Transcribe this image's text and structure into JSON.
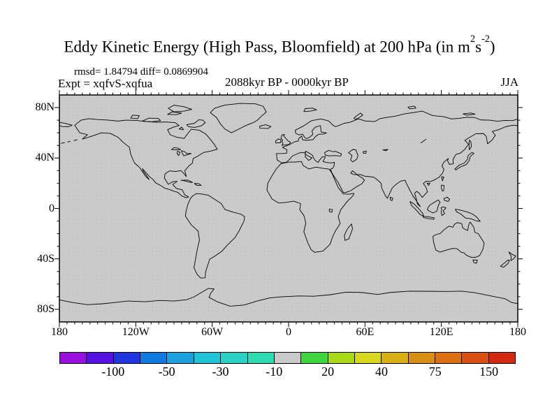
{
  "title": {
    "pre": "Eddy Kinetic Energy (High Pass, Bloomfield) at 200 hPa (in m",
    "sup1": "2",
    "mid": "s",
    "sup2": "-2",
    "post": ")"
  },
  "header": {
    "stats": "rmsd= 1.84794 diff= 0.0869904",
    "expt": "Expt = xqfvS-xqfua",
    "period": "2088kyr BP - 0000kyr BP",
    "season": "JJA"
  },
  "axes": {
    "lat_labels": [
      "80N",
      "40N",
      "0",
      "40S",
      "80S"
    ],
    "lat_values": [
      80,
      40,
      0,
      -40,
      -80
    ],
    "lon_labels": [
      "180",
      "120W",
      "60W",
      "0",
      "60E",
      "120E",
      "180"
    ]
  },
  "colorbar": {
    "labels": [
      "-100",
      "-50",
      "-30",
      "-10",
      "20",
      "40",
      "75",
      "150"
    ],
    "colors": [
      "#990fdd",
      "#5511e0",
      "#2236e0",
      "#0f7ae0",
      "#1ba2dc",
      "#1fc4d8",
      "#2ad0c4",
      "#2edcb2",
      "#cacaca",
      "#3ed53e",
      "#a8d816",
      "#d8d820",
      "#d8b014",
      "#d89014",
      "#dd7014",
      "#d85014",
      "#d42810"
    ]
  },
  "chart_data": {
    "type": "heatmap",
    "subtype": "global-map-difference-plot",
    "projection": "equirectangular",
    "title": "Eddy Kinetic Energy (High Pass, Bloomfield) at 200 hPa (in m2 s-2)",
    "rmsd": 1.84794,
    "diff": 0.0869904,
    "experiment": "xqfvS-xqfua",
    "period": "2088kyr BP - 0000kyr BP",
    "season": "JJA",
    "lon_range": [
      -180,
      180
    ],
    "lat_range": [
      -90,
      90
    ],
    "lon_tick_labels": [
      "180",
      "120W",
      "60W",
      "0",
      "60E",
      "120E",
      "180"
    ],
    "lat_tick_labels": [
      "80N",
      "40N",
      "0",
      "40S",
      "80S"
    ],
    "colorbar_levels": [
      -150,
      -100,
      -75,
      -50,
      -40,
      -30,
      -20,
      -10,
      10,
      20,
      30,
      40,
      50,
      75,
      100,
      150
    ],
    "colorbar_shown_labels": [
      "-100",
      "-50",
      "-30",
      "-10",
      "20",
      "40",
      "75",
      "150"
    ],
    "colorbar_colors": [
      "#990fdd",
      "#5511e0",
      "#2236e0",
      "#0f7ae0",
      "#1ba2dc",
      "#1fc4d8",
      "#2ad0c4",
      "#2edcb2",
      "#cacaca",
      "#3ed53e",
      "#a8d816",
      "#d8d820",
      "#d8b014",
      "#d89014",
      "#dd7014",
      "#d85014",
      "#d42810"
    ],
    "field_appearance": "difference field everywhere within -10..10 band, rendered uniform gray with black coastlines",
    "grid": false,
    "legend_position": "bottom horizontal colorbar"
  }
}
